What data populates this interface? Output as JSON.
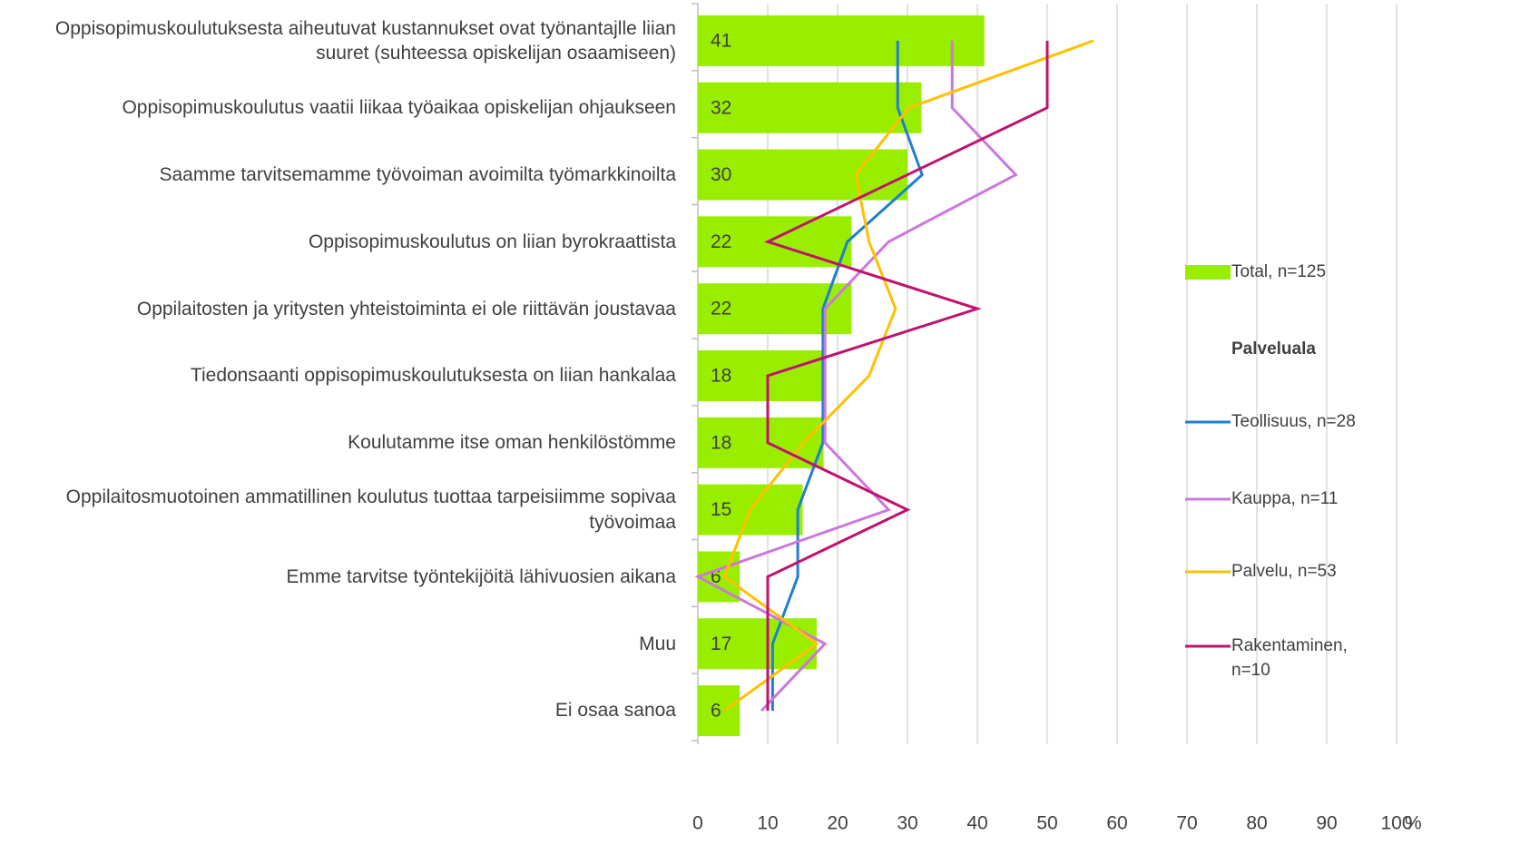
{
  "chart_data": {
    "type": "bar",
    "orientation": "horizontal",
    "categories": [
      "Oppisopimuskoulutuksesta aiheutuvat kustannukset ovat työnantajlle liian suuret (suhteessa opiskelijan osaamiseen)",
      "Oppisopimuskoulutus vaatii liikaa työaikaa opiskelijan ohjaukseen",
      "Saamme tarvitsemamme työvoiman avoimilta työmarkkinoilta",
      "Oppisopimuskoulutus on liian byrokraattista",
      "Oppilaitosten ja yritysten yhteistoiminta ei ole riittävän joustavaa",
      "Tiedonsaanti oppisopimuskoulutuksesta on liian hankalaa",
      "Koulutamme itse oman henkilöstömme",
      "Oppilaitosmuotoinen ammatillinen koulutus tuottaa tarpeisiimme sopivaa työvoimaa",
      "Emme tarvitse työntekijöitä lähivuosien aikana",
      "Muu",
      "Ei osaa sanoa"
    ],
    "series": [
      {
        "name": "Total, n=125",
        "type": "bar",
        "color": "#99ee00",
        "values": [
          41,
          32,
          30,
          22,
          22,
          18,
          18,
          15,
          6,
          17,
          6
        ]
      },
      {
        "name": "Teollisuus, n=28",
        "type": "line",
        "color": "#1f7fd0",
        "values": [
          28.6,
          28.6,
          32.1,
          21.4,
          17.9,
          17.9,
          17.9,
          14.3,
          14.3,
          10.7,
          10.7
        ]
      },
      {
        "name": "Kauppa, n=11",
        "type": "line",
        "color": "#cc77dd",
        "values": [
          36.4,
          36.4,
          45.5,
          27.3,
          18.2,
          18.2,
          18.2,
          27.3,
          0,
          18.2,
          9.1
        ]
      },
      {
        "name": "Palvelu, n=53",
        "type": "line",
        "color": "#ffc000",
        "values": [
          56.6,
          30.2,
          22.6,
          24.5,
          28.3,
          24.5,
          15.1,
          7.5,
          3.8,
          17,
          3.8
        ]
      },
      {
        "name": "Rakentaminen, n=10",
        "type": "line",
        "color": "#c0126e",
        "values": [
          50,
          50,
          30,
          10,
          40,
          10,
          10,
          30,
          10,
          10,
          10
        ]
      }
    ],
    "legend_heading": "Palveluala",
    "x_label": "%",
    "xlim": [
      0,
      100
    ],
    "xticks": [
      0,
      10,
      20,
      30,
      40,
      50,
      60,
      70,
      80,
      90,
      100
    ],
    "grid": true
  }
}
